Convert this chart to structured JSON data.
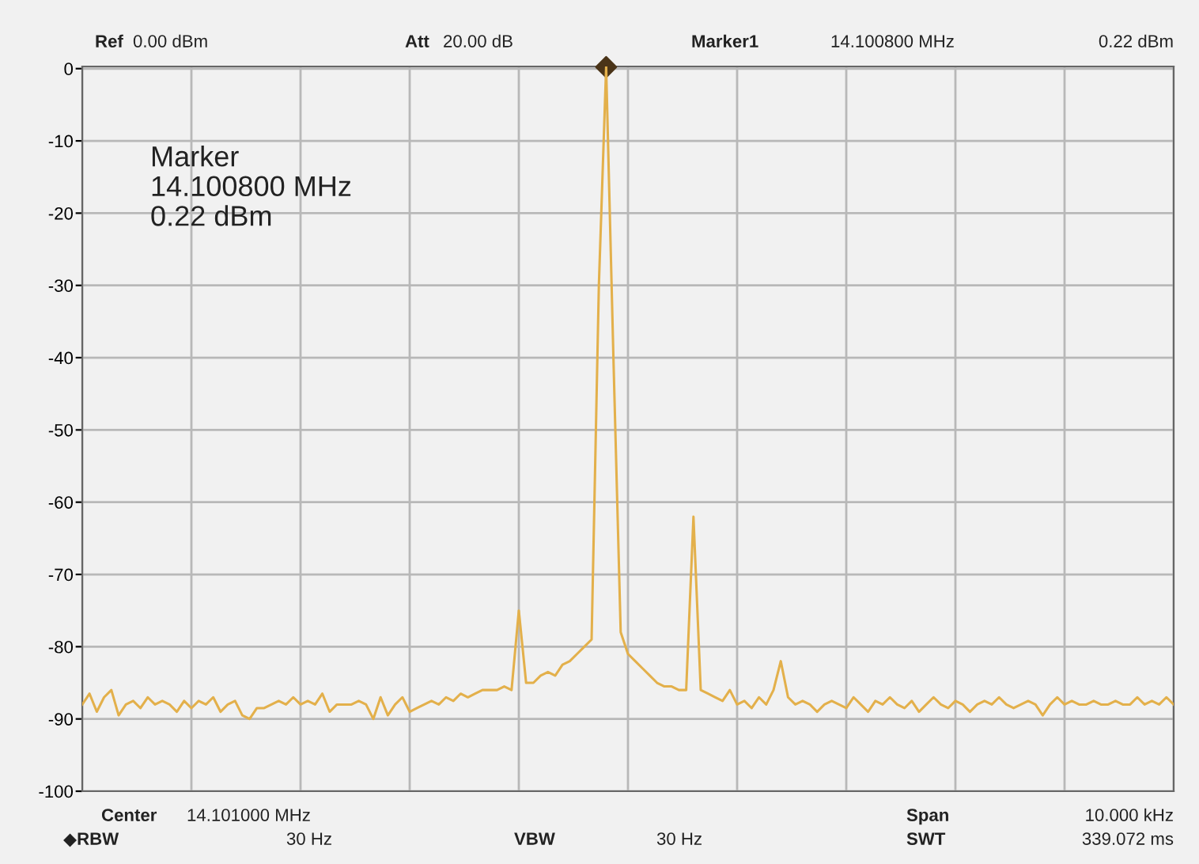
{
  "chart_data": {
    "type": "line",
    "ylim": [
      -100,
      0.3
    ],
    "yticks": [
      0,
      -10,
      -20,
      -30,
      -40,
      -50,
      -60,
      -70,
      -80,
      -90,
      -100
    ],
    "grid": true,
    "categories": [
      null,
      null,
      null,
      null,
      null,
      null,
      null,
      null,
      null,
      null,
      null,
      null,
      null,
      null,
      null,
      null,
      null,
      null,
      null,
      null,
      null,
      null,
      null,
      null,
      null,
      null,
      null,
      null,
      null,
      null,
      null,
      null,
      null,
      null,
      null,
      null,
      null,
      null,
      null,
      null,
      null,
      null,
      null,
      null,
      null,
      null,
      null,
      null,
      null,
      null,
      null,
      null,
      null,
      null,
      null,
      null,
      null,
      null,
      null,
      null,
      null,
      null,
      null,
      null,
      null,
      null,
      null,
      null,
      null,
      null,
      null,
      null,
      null,
      null,
      null,
      null,
      null,
      null,
      null,
      null,
      null,
      null,
      null,
      null,
      null,
      null,
      null,
      null,
      null,
      null,
      null,
      null,
      null,
      null,
      null,
      null,
      null,
      null,
      null,
      null,
      null,
      null,
      null,
      null,
      null,
      null,
      null,
      null,
      null,
      null,
      null,
      null,
      null,
      null,
      null,
      null,
      null,
      null,
      null,
      null,
      null,
      null,
      null,
      null,
      null,
      null,
      null,
      null,
      null,
      null,
      null,
      null,
      null,
      null,
      null,
      null,
      null,
      null,
      null,
      null,
      null,
      null,
      null,
      null,
      null,
      null,
      null,
      null,
      null,
      null,
      null
    ],
    "series": [
      {
        "color": "#e3b04b",
        "marker": "none",
        "line_style": "solid",
        "values": [
          -88,
          -86.5,
          -89,
          -87,
          -86,
          -89.5,
          -88,
          -87.5,
          -88.5,
          -87,
          -88,
          -87.5,
          -88,
          -89,
          -87.5,
          -88.5,
          -87.5,
          -88,
          -87,
          -89,
          -88,
          -87.5,
          -89.5,
          -90,
          -88.5,
          -88.5,
          -88,
          -87.5,
          -88,
          -87,
          -88,
          -87.5,
          -88,
          -86.5,
          -89,
          -88,
          -88,
          -88,
          -87.5,
          -88,
          -90,
          -87,
          -89.5,
          -88,
          -87,
          -89,
          -88.5,
          -88,
          -87.5,
          -88,
          -87,
          -87.5,
          -86.5,
          -87,
          -86.5,
          -86,
          -86,
          -86,
          -85.5,
          -86,
          -75,
          -85,
          -85,
          -84,
          -83.5,
          -84,
          -82.5,
          -82,
          -81,
          -80,
          -79,
          -30,
          0.22,
          -40,
          -78,
          -81,
          -82,
          -83,
          -84,
          -85,
          -85.5,
          -85.5,
          -86,
          -86,
          -62,
          -86,
          -86.5,
          -87,
          -87.5,
          -86,
          -88,
          -87.5,
          -88.5,
          -87,
          -88,
          -86,
          -82,
          -87,
          -88,
          -87.5,
          -88,
          -89,
          -88,
          -87.5,
          -88,
          -88.5,
          -87,
          -88,
          -89,
          -87.5,
          -88,
          -87,
          -88,
          -88.5,
          -87.5,
          -89,
          -88,
          -87,
          -88,
          -88.5,
          -87.5,
          -88,
          -89,
          -88,
          -87.5,
          -88,
          -87,
          -88,
          -88.5,
          -88,
          -87.5,
          -88,
          -89.5,
          -88,
          -87,
          -88,
          -87.5,
          -88,
          -88,
          -87.5,
          -88,
          -88,
          -87.5,
          -88,
          -88,
          -87,
          -88,
          -87.5,
          -88,
          -87,
          -88
        ]
      },
      {
        "type": "scatter",
        "color": "#4a3418",
        "marker": "diamond",
        "values": [
          null,
          null,
          null,
          null,
          null,
          null,
          null,
          null,
          null,
          null,
          null,
          null,
          null,
          null,
          null,
          null,
          null,
          null,
          null,
          null,
          null,
          null,
          null,
          null,
          null,
          null,
          null,
          null,
          null,
          null,
          null,
          null,
          null,
          null,
          null,
          null,
          null,
          null,
          null,
          null,
          null,
          null,
          null,
          null,
          null,
          null,
          null,
          null,
          null,
          null,
          null,
          null,
          null,
          null,
          null,
          null,
          null,
          null,
          null,
          null,
          null,
          null,
          null,
          null,
          null,
          null,
          null,
          null,
          null,
          null,
          null,
          null,
          0.22,
          null,
          null,
          null,
          null,
          null,
          null,
          null,
          null,
          null,
          null,
          null,
          null,
          null,
          null,
          null,
          null,
          null,
          null,
          null,
          null,
          null,
          null,
          null,
          null,
          null,
          null,
          null,
          null,
          null,
          null,
          null,
          null,
          null,
          null,
          null,
          null,
          null,
          null,
          null,
          null,
          null,
          null,
          null,
          null,
          null,
          null,
          null,
          null,
          null,
          null,
          null,
          null,
          null,
          null,
          null,
          null,
          null,
          null,
          null,
          null,
          null,
          null,
          null,
          null,
          null,
          null,
          null,
          null,
          null,
          null,
          null,
          null,
          null,
          null,
          null,
          null,
          null,
          null
        ]
      }
    ],
    "annotations": [
      "Marker\n14.100800 MHz\n0.22 dBm",
      "Ref",
      "0.00 dBm",
      "Att",
      "20.00 dB",
      "Marker1",
      "14.100800 MHz",
      "0.22 dBm",
      "Center",
      "14.101000 MHz",
      "Span",
      "10.000 kHz",
      "◆RBW",
      "30 Hz",
      "VBW",
      "30 Hz",
      "SWT",
      "339.072 ms"
    ]
  }
}
